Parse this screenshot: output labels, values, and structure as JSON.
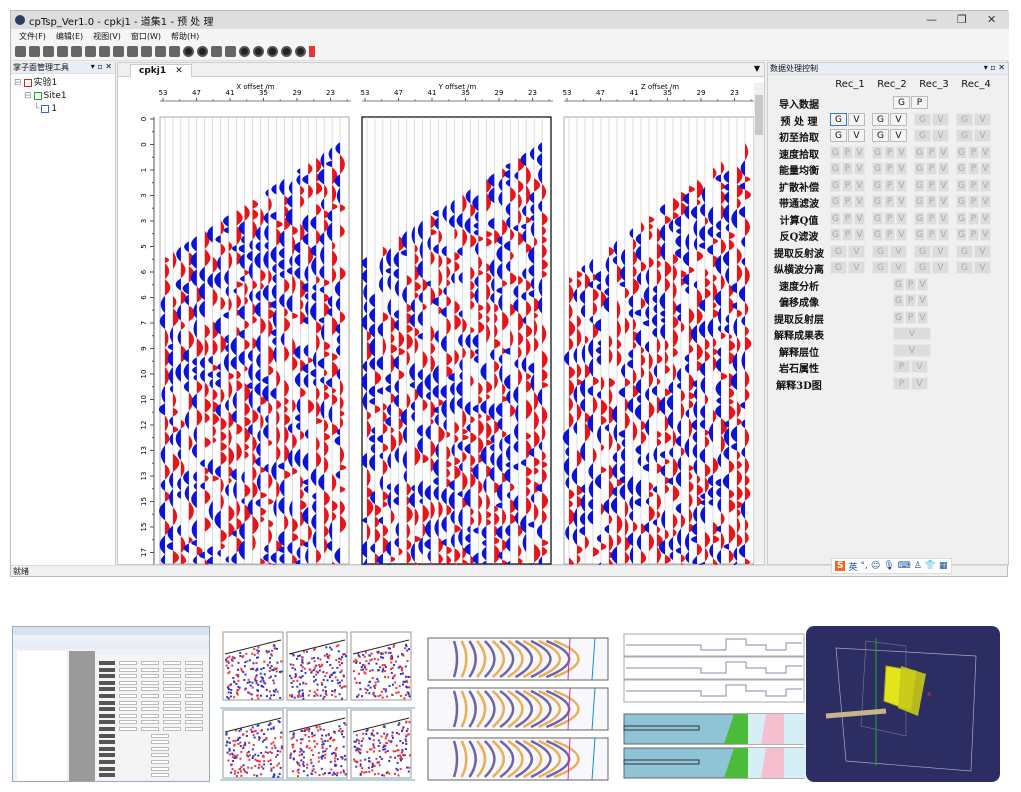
{
  "window": {
    "title": "cpTsp_Ver1.0 - cpkj1 - 道集1 - 预 处 理",
    "controls": [
      "—",
      "❐",
      "✕"
    ]
  },
  "menu": [
    "文件(F)",
    "编辑(E)",
    "视图(V)",
    "窗口(W)",
    "帮助(H)"
  ],
  "left_panel": {
    "title": "掌子面管理工具",
    "buttons": "▾ ▫ ✕",
    "tree": [
      {
        "label": "实验1",
        "level": 0,
        "expander": "⊟"
      },
      {
        "label": "Site1",
        "level": 1,
        "expander": "⊟"
      },
      {
        "label": "1",
        "level": 2,
        "expander": "└"
      }
    ]
  },
  "document_tab": {
    "label": "cpkj1",
    "close": "✕",
    "dropdown": "▼"
  },
  "seismic": {
    "panels": [
      {
        "title": "X offset /m"
      },
      {
        "title": "Y offset /m"
      },
      {
        "title": "Z offset /m"
      }
    ],
    "x_ticks": [
      "53",
      "47",
      "41",
      "35",
      "29",
      "23"
    ],
    "y_ticks": [
      "0",
      "0",
      "1",
      "3",
      "3",
      "5",
      "6",
      "6",
      "7",
      "9",
      "10",
      "10",
      "12",
      "13",
      "13",
      "15",
      "15",
      "17"
    ],
    "colors": {
      "positive": "#e8141a",
      "negative": "#0a14d8"
    }
  },
  "right_panel": {
    "title": "数据处理控制",
    "buttons": "▾ ▫ ✕",
    "headers": [
      "Rec_1",
      "Rec_2",
      "Rec_3",
      "Rec_4"
    ],
    "rows": [
      {
        "label": "导入数据",
        "merged": [
          "G",
          "P"
        ],
        "enabled": true
      },
      {
        "label": "预 处 理",
        "recs": [
          [
            "G",
            "V"
          ],
          [
            "G",
            "V"
          ],
          [
            "G",
            "V"
          ],
          [
            "G",
            "V"
          ]
        ],
        "enabled_recs": [
          true,
          true,
          false,
          false
        ],
        "selected": "Rec_1 G"
      },
      {
        "label": "初至拾取",
        "recs": [
          [
            "G",
            "V"
          ],
          [
            "G",
            "V"
          ],
          [
            "G",
            "V"
          ],
          [
            "G",
            "V"
          ]
        ],
        "enabled_recs": [
          true,
          true,
          false,
          false
        ]
      },
      {
        "label": "速度拾取",
        "recs": [
          [
            "G",
            "P",
            "V"
          ],
          [
            "G",
            "P",
            "V"
          ],
          [
            "G",
            "P",
            "V"
          ],
          [
            "G",
            "P",
            "V"
          ]
        ]
      },
      {
        "label": "能量均衡",
        "recs": [
          [
            "G",
            "P",
            "V"
          ],
          [
            "G",
            "P",
            "V"
          ],
          [
            "G",
            "P",
            "V"
          ],
          [
            "G",
            "P",
            "V"
          ]
        ]
      },
      {
        "label": "扩散补偿",
        "recs": [
          [
            "G",
            "P",
            "V"
          ],
          [
            "G",
            "P",
            "V"
          ],
          [
            "G",
            "P",
            "V"
          ],
          [
            "G",
            "P",
            "V"
          ]
        ]
      },
      {
        "label": "带通滤波",
        "recs": [
          [
            "G",
            "P",
            "V"
          ],
          [
            "G",
            "P",
            "V"
          ],
          [
            "G",
            "P",
            "V"
          ],
          [
            "G",
            "P",
            "V"
          ]
        ]
      },
      {
        "label": "计算Q值",
        "recs": [
          [
            "G",
            "P",
            "V"
          ],
          [
            "G",
            "P",
            "V"
          ],
          [
            "G",
            "P",
            "V"
          ],
          [
            "G",
            "P",
            "V"
          ]
        ]
      },
      {
        "label": "反Q滤波",
        "recs": [
          [
            "G",
            "P",
            "V"
          ],
          [
            "G",
            "P",
            "V"
          ],
          [
            "G",
            "P",
            "V"
          ],
          [
            "G",
            "P",
            "V"
          ]
        ]
      },
      {
        "label": "提取反射波",
        "recs": [
          [
            "G",
            "V"
          ],
          [
            "G",
            "V"
          ],
          [
            "G",
            "V"
          ],
          [
            "G",
            "V"
          ]
        ]
      },
      {
        "label": "纵横波分离",
        "recs": [
          [
            "G",
            "V"
          ],
          [
            "G",
            "V"
          ],
          [
            "G",
            "V"
          ],
          [
            "G",
            "V"
          ]
        ]
      },
      {
        "label": "速度分析",
        "merged": [
          "G",
          "P",
          "V"
        ]
      },
      {
        "label": "偏移成像",
        "merged": [
          "G",
          "P",
          "V"
        ]
      },
      {
        "label": "提取反射层",
        "merged": [
          "G",
          "P",
          "V"
        ]
      },
      {
        "label": "解释成果表",
        "merged": [
          "V"
        ]
      },
      {
        "label": "解释层位",
        "merged": [
          "V"
        ]
      },
      {
        "label": "岩石属性",
        "merged": [
          "P",
          "V"
        ]
      },
      {
        "label": "解释3D图",
        "merged": [
          "P",
          "V"
        ]
      }
    ]
  },
  "status": {
    "text": "就绪"
  },
  "ime": {
    "logo": "S",
    "mode": "英",
    "icons": [
      "punctuation-icon",
      "emoji-icon",
      "mic-icon",
      "keyboard-icon",
      "user-icon",
      "skin-icon",
      "grid-icon"
    ]
  }
}
